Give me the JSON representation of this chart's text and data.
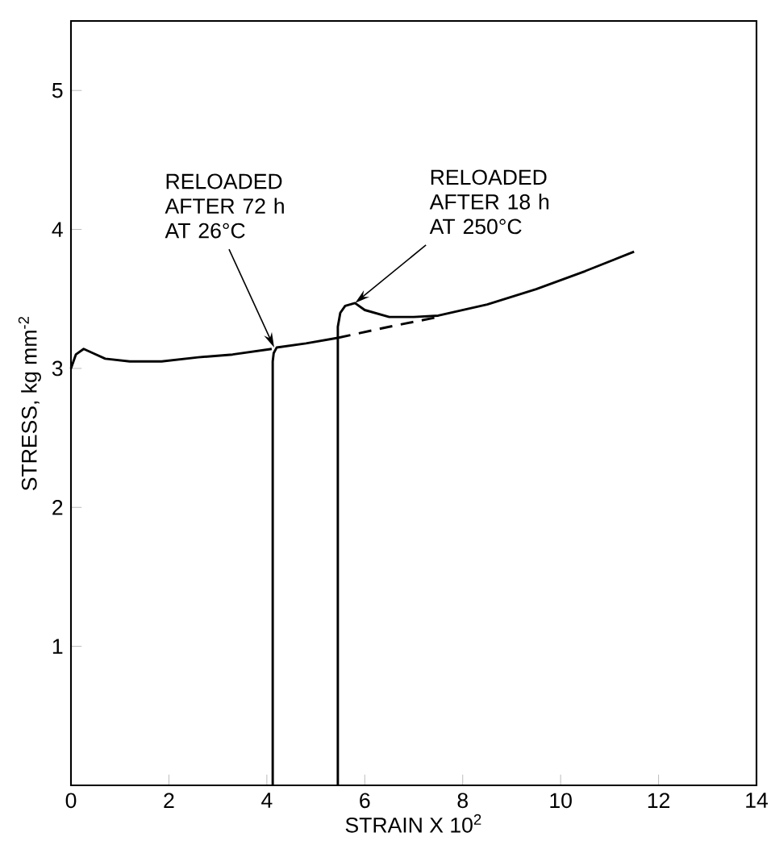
{
  "chart_data": {
    "type": "line",
    "xlabel": "STRAIN X 10$^{2}$",
    "ylabel": "STRESS, kg mm$^{-2}$",
    "xlim": [
      0,
      14
    ],
    "ylim": [
      0,
      5.5
    ],
    "xticks": [
      0,
      2,
      4,
      6,
      8,
      10,
      12,
      14
    ],
    "yticks": [
      1,
      2,
      3,
      4,
      5
    ],
    "series": [
      {
        "color": "#000000",
        "x": [
          0,
          0.1,
          0.26,
          0.45,
          0.7,
          1.2,
          1.85,
          2.6,
          3.3,
          4.1
        ],
        "values": [
          3.0,
          3.1,
          3.14,
          3.11,
          3.07,
          3.05,
          3.05,
          3.08,
          3.1,
          3.14
        ]
      },
      {
        "color": "#000000",
        "x": [
          4.12,
          4.12,
          4.14,
          4.2,
          4.8,
          5.45
        ],
        "values": [
          0,
          3.05,
          3.11,
          3.15,
          3.18,
          3.22
        ]
      },
      {
        "color": "#000000",
        "line_style": "dashed",
        "x": [
          5.45,
          6.5,
          7.5
        ],
        "values": [
          3.22,
          3.3,
          3.37
        ]
      },
      {
        "color": "#000000",
        "x": [
          5.45,
          5.45,
          5.5,
          5.6,
          5.8,
          6.0,
          6.5,
          7.0,
          7.5,
          8.5,
          9.5,
          10.5,
          11.5
        ],
        "values": [
          0,
          3.3,
          3.4,
          3.45,
          3.47,
          3.42,
          3.37,
          3.37,
          3.38,
          3.46,
          3.57,
          3.7,
          3.84
        ]
      }
    ],
    "annotations": [
      {
        "text": "RELOADED AFTER 72 h AT 26°C",
        "x": 4.15,
        "y": 3.15
      },
      {
        "text": "RELOADED AFTER 18 h AT 250°C",
        "x": 5.8,
        "y": 3.47
      }
    ]
  }
}
